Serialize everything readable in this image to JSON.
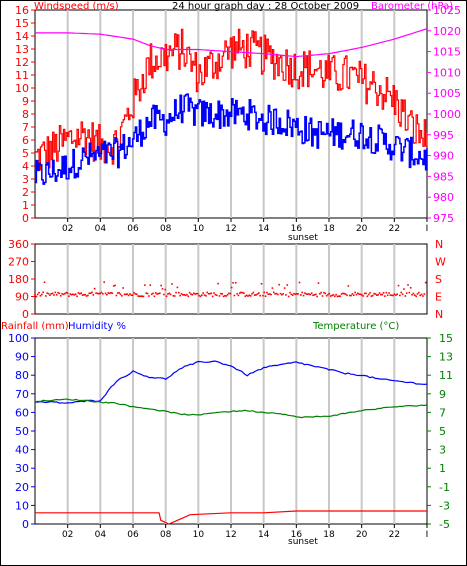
{
  "title": "24 hour graph day : 28 October 2009",
  "colors": {
    "wind_gust": "#ff0000",
    "wind_avg": "#0000ff",
    "baro": "#ff00ff",
    "dir": "#ff0000",
    "rain": "#ff0000",
    "humidity": "#0000ff",
    "temp": "#008000",
    "grid": "#c8c8c8"
  },
  "chart_data": [
    {
      "type": "line",
      "title": "24 hour graph day : 28 October 2009",
      "ylabel_left": "Windspeed (m/s)",
      "ylabel_right": "Barometer (hPa)",
      "xlabel": "sunset",
      "x_ticks": [
        "02",
        "04",
        "06",
        "08",
        "10",
        "12",
        "14",
        "16",
        "18",
        "20",
        "22"
      ],
      "ylim_left": [
        0,
        16
      ],
      "ylim_right": [
        975,
        1025
      ],
      "yticks_left": [
        "0",
        "1",
        "2",
        "3",
        "4",
        "5",
        "6",
        "7",
        "8",
        "9",
        "10",
        "11",
        "12",
        "13",
        "14",
        "15",
        "16"
      ],
      "yticks_right": [
        "975",
        "980",
        "985",
        "990",
        "995",
        "1000",
        "1005",
        "1010",
        "1015",
        "1020",
        "1025"
      ],
      "series": [
        {
          "name": "gust",
          "axis": "left",
          "x": [
            0,
            1,
            2,
            3,
            4,
            5,
            6,
            7,
            8,
            9,
            10,
            11,
            12,
            13,
            14,
            15,
            16,
            17,
            18,
            19,
            20,
            21,
            22,
            23,
            24
          ],
          "values": [
            4.6,
            5.2,
            6,
            6.5,
            5.5,
            5.8,
            9,
            12,
            12.5,
            13,
            11,
            12,
            13,
            13,
            12.5,
            12,
            11.5,
            11.5,
            11,
            11,
            10.5,
            10,
            9,
            7,
            6
          ]
        },
        {
          "name": "avg",
          "axis": "left",
          "x": [
            0,
            1,
            2,
            3,
            4,
            5,
            6,
            7,
            8,
            9,
            10,
            11,
            12,
            13,
            14,
            15,
            16,
            17,
            18,
            19,
            20,
            21,
            22,
            23,
            24
          ],
          "values": [
            3.2,
            3.5,
            4,
            4.6,
            4.8,
            5,
            6,
            7.5,
            7.5,
            8.5,
            8,
            8,
            8,
            8,
            7.5,
            7.5,
            7,
            6.5,
            6.5,
            6.5,
            6.5,
            6,
            5.5,
            5,
            4.6
          ]
        },
        {
          "name": "barometer",
          "axis": "right",
          "x": [
            0,
            2,
            4,
            6,
            7,
            8,
            10,
            12,
            14,
            16,
            18,
            20,
            22,
            24
          ],
          "values": [
            1019.5,
            1019.5,
            1019.2,
            1018,
            1016.5,
            1015.5,
            1015.5,
            1015,
            1014.5,
            1013.8,
            1014.5,
            1016,
            1018,
            1020.5
          ]
        }
      ]
    },
    {
      "type": "scatter",
      "ylim": [
        0,
        360
      ],
      "yticks": [
        "360",
        "270",
        "180",
        "90",
        "0"
      ],
      "compass_labels": [
        "N",
        "W",
        "S",
        "E",
        "N"
      ],
      "series": [
        {
          "name": "wind direction",
          "x": [
            0,
            24
          ],
          "values_band": [
            [
              90,
              110
            ],
            [
              90,
              110
            ]
          ]
        }
      ]
    },
    {
      "type": "line",
      "ylabel_left": "Rainfall (mm)",
      "ylabel_left2": "Humidity %",
      "ylabel_right": "Temperature (°C)",
      "xlabel": "sunset",
      "x_ticks": [
        "02",
        "04",
        "06",
        "08",
        "10",
        "12",
        "14",
        "16",
        "18",
        "20",
        "22"
      ],
      "ylim_left": [
        0,
        100
      ],
      "ylim_right": [
        -5,
        15
      ],
      "yticks_left": [
        "0",
        "10",
        "20",
        "30",
        "40",
        "50",
        "60",
        "70",
        "80",
        "90",
        "100"
      ],
      "yticks_right": [
        "-5",
        "-3",
        "-1",
        "1",
        "3",
        "5",
        "7",
        "9",
        "11",
        "13",
        "15"
      ],
      "series": [
        {
          "name": "humidity",
          "axis": "left",
          "x": [
            0,
            1,
            2,
            3,
            4,
            5,
            6,
            7,
            8,
            9,
            10,
            11,
            12,
            13,
            14,
            15,
            16,
            17,
            18,
            19,
            20,
            21,
            22,
            23,
            24
          ],
          "values": [
            65.5,
            65.5,
            65,
            66,
            66.5,
            77,
            82,
            79,
            78,
            84,
            87,
            87.5,
            85,
            80,
            84,
            85.5,
            87,
            85,
            83,
            81,
            80,
            78,
            77,
            76,
            75
          ]
        },
        {
          "name": "temperature",
          "axis": "right",
          "x": [
            0,
            1,
            2,
            3,
            4,
            5,
            6,
            7,
            8,
            9,
            10,
            11,
            12,
            13,
            14,
            15,
            16,
            17,
            18,
            19,
            20,
            21,
            22,
            23,
            24
          ],
          "values": [
            8.2,
            8.3,
            8.4,
            8.3,
            8.1,
            8.0,
            7.6,
            7.4,
            7.1,
            6.8,
            6.7,
            7.0,
            7.1,
            7.2,
            7.0,
            6.9,
            6.5,
            6.5,
            6.6,
            6.9,
            7.2,
            7.4,
            7.6,
            7.7,
            7.8
          ]
        },
        {
          "name": "rainfall",
          "axis": "left",
          "x": [
            0,
            2,
            4,
            6,
            7.6,
            7.7,
            8.2,
            8.6,
            9.5,
            12,
            14,
            16,
            18,
            20,
            22,
            24
          ],
          "values": [
            6,
            6,
            6,
            6,
            6,
            2,
            0,
            1.5,
            5,
            6,
            6,
            7,
            7,
            7,
            7,
            7
          ]
        }
      ]
    }
  ]
}
